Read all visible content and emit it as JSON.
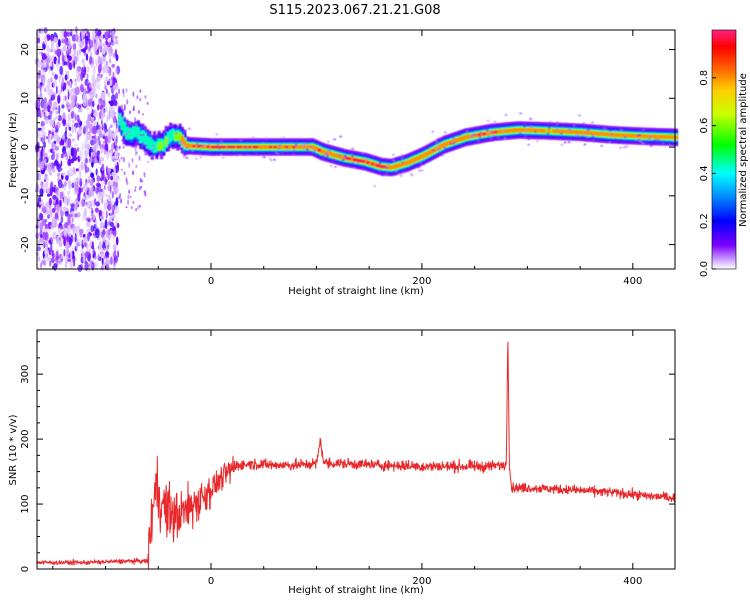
{
  "title": "S115.2023.067.21.21.G08",
  "chart_data": [
    {
      "type": "heatmap",
      "xlabel": "Height of straight line (km)",
      "ylabel": "Frequency (Hz)",
      "xlim": [
        -165,
        440
      ],
      "ylim": [
        -25,
        24
      ],
      "xticks": [
        0,
        200,
        400
      ],
      "yticks": [
        -20,
        -10,
        0,
        10,
        20
      ],
      "colorbar": {
        "label": "Normalized spectral amplitude",
        "range": [
          0,
          1
        ],
        "ticks": [
          0.0,
          0.2,
          0.4,
          0.6,
          0.8
        ]
      },
      "noise_region_x": [
        -165,
        -88
      ],
      "ridge": {
        "x": [
          -88,
          -80,
          -72,
          -64,
          -56,
          -48,
          -40,
          -32,
          -25,
          0,
          50,
          95,
          105,
          125,
          145,
          160,
          170,
          185,
          200,
          220,
          240,
          265,
          290,
          320,
          350,
          380,
          410,
          440
        ],
        "freq": [
          5.5,
          2.5,
          3.0,
          1.5,
          0.0,
          0.5,
          2.0,
          2.5,
          0.3,
          0.0,
          0.0,
          0.0,
          -1.0,
          -2.2,
          -3.0,
          -4.0,
          -4.2,
          -3.2,
          -1.8,
          0.5,
          2.0,
          3.0,
          3.5,
          3.3,
          3.0,
          2.5,
          2.2,
          2.0
        ],
        "amplitude": [
          0.45,
          0.5,
          0.45,
          0.5,
          0.55,
          0.6,
          0.5,
          0.6,
          0.95,
          0.95,
          0.95,
          0.9,
          0.95,
          0.95,
          0.95,
          0.95,
          0.9,
          0.9,
          0.9,
          0.9,
          0.9,
          0.95,
          0.85,
          0.8,
          0.9,
          0.8,
          0.9,
          0.8
        ]
      }
    },
    {
      "type": "line",
      "xlabel": "Height of straight line (km)",
      "ylabel": "SNR (10 * v/v)",
      "xlim": [
        -165,
        440
      ],
      "ylim": [
        0,
        368
      ],
      "xticks": [
        0,
        200,
        400
      ],
      "yticks": [
        0,
        100,
        200,
        300
      ],
      "series": [
        {
          "color": "#e8282a",
          "x": [
            -165,
            -120,
            -100,
            -80,
            -60,
            -56,
            -52,
            -45,
            -35,
            -20,
            -5,
            10,
            25,
            40,
            60,
            80,
            100,
            104,
            106,
            108,
            130,
            160,
            200,
            240,
            260,
            280,
            281.5,
            283,
            285,
            300,
            340,
            380,
            410,
            440
          ],
          "y": [
            10,
            10,
            11,
            12,
            12,
            80,
            130,
            95,
            80,
            95,
            115,
            140,
            160,
            162,
            160,
            160,
            162,
            200,
            170,
            163,
            162,
            160,
            158,
            158,
            158,
            160,
            363,
            160,
            125,
            125,
            122,
            118,
            113,
            110
          ]
        }
      ]
    }
  ]
}
